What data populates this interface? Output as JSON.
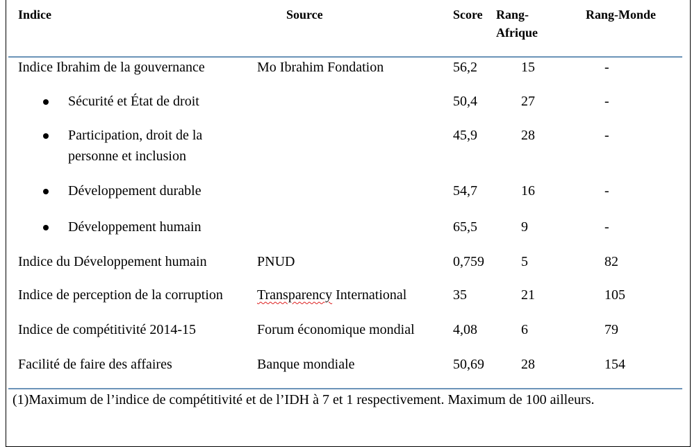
{
  "headers": {
    "indice": "Indice",
    "source": "Source",
    "score": "Score",
    "rang_afrique_1": "Rang-",
    "rang_afrique_2": "Afrique",
    "rang_monde": "Rang-Monde"
  },
  "rows": [
    {
      "indice": "Indice Ibrahim de la gouvernance",
      "source": "Mo Ibrahim Fondation",
      "score": "56,2",
      "rang_afrique": "15",
      "rang_monde": "-"
    },
    {
      "indice": "Sécurité et État de droit",
      "source": "",
      "score": "50,4",
      "rang_afrique": "27",
      "rang_monde": "-"
    },
    {
      "indice_line1": "Participation, droit de la",
      "indice_line2": "personne et inclusion",
      "source": "",
      "score": "45,9",
      "rang_afrique": "28",
      "rang_monde": "-"
    },
    {
      "indice": "Développement durable",
      "source": "",
      "score": "54,7",
      "rang_afrique": "16",
      "rang_monde": "-"
    },
    {
      "indice": "Développement humain",
      "source": "",
      "score": "65,5",
      "rang_afrique": "9",
      "rang_monde": "-"
    },
    {
      "indice": "Indice du Développement humain",
      "source": "PNUD",
      "score": "0,759",
      "rang_afrique": "5",
      "rang_monde": "82"
    },
    {
      "indice": "Indice de perception de la corruption",
      "source_word1": "Transparency",
      "source_word2": "International",
      "score": "35",
      "rang_afrique": "21",
      "rang_monde": "105"
    },
    {
      "indice": "Indice de compétitivité 2014-15",
      "source": "Forum économique mondial",
      "score": "4,08",
      "rang_afrique": "6",
      "rang_monde": "79"
    },
    {
      "indice": "Facilité de faire des affaires",
      "source": "Banque mondiale",
      "score": "50,69",
      "rang_afrique": "28",
      "rang_monde": "154"
    }
  ],
  "footnote": "(1)Maximum de l’indice de compétitivité et de l’IDH à 7 et 1 respectivement. Maximum de 100 ailleurs."
}
